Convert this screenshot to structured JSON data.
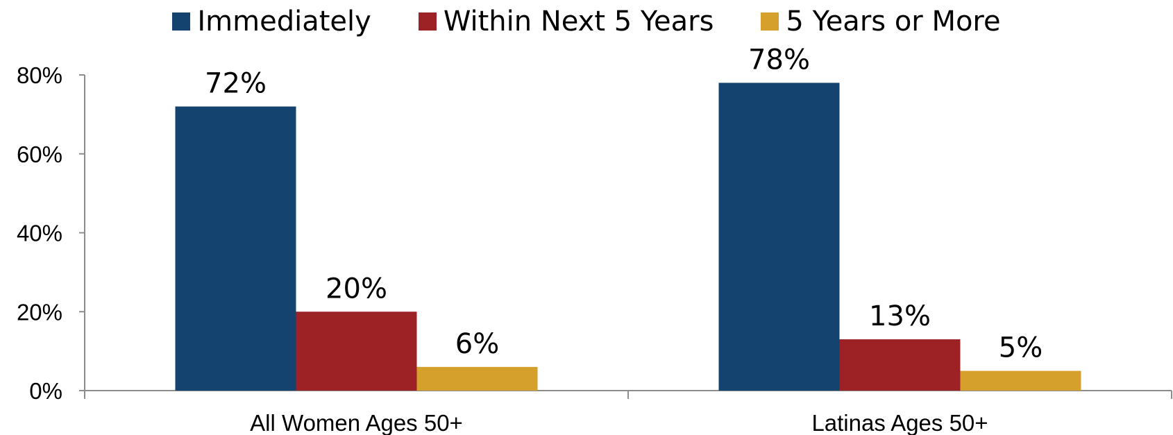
{
  "chart_data": {
    "type": "bar",
    "title": "",
    "xlabel": "",
    "ylabel": "",
    "categories": [
      "All Women Ages 50+",
      "Latinas Ages 50+"
    ],
    "series": [
      {
        "name": "Immediately",
        "color": "#15436f",
        "values": [
          72,
          78
        ],
        "labels": [
          "72%",
          "78%"
        ]
      },
      {
        "name": "Within Next 5 Years",
        "color": "#9c2225",
        "values": [
          20,
          13
        ],
        "labels": [
          "20%",
          "13%"
        ]
      },
      {
        "name": "5 Years or More",
        "color": "#d6a02c",
        "values": [
          6,
          5
        ],
        "labels": [
          "6%",
          "5%"
        ]
      }
    ],
    "ylim": [
      0,
      80
    ],
    "yticks": [
      0,
      20,
      40,
      60,
      80
    ],
    "ytick_labels": [
      "0%",
      "20%",
      "40%",
      "60%",
      "80%"
    ],
    "grid": false,
    "legend_position": "top-center"
  }
}
